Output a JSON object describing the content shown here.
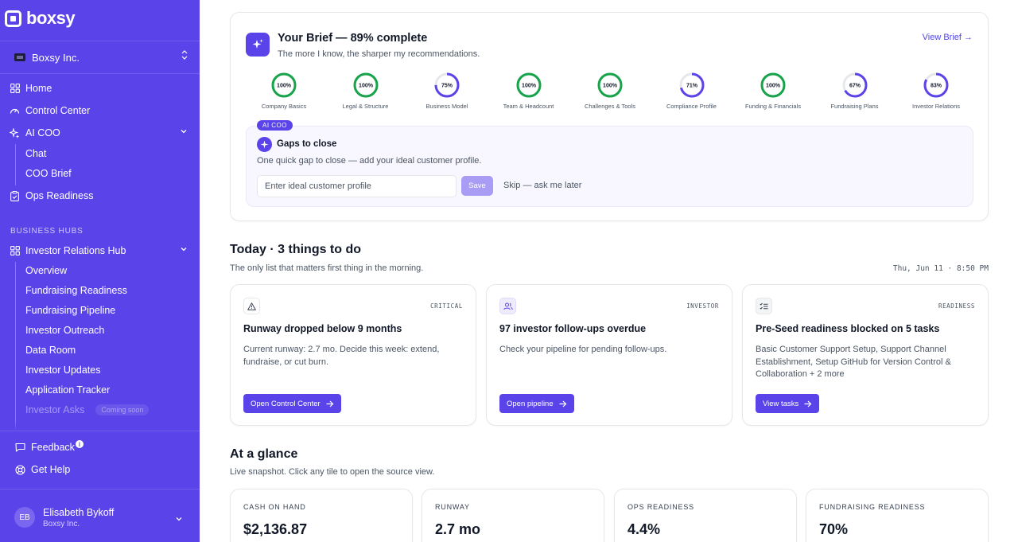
{
  "brand": {
    "name": "boxsy"
  },
  "org": {
    "name": "Boxsy Inc."
  },
  "sidebar": {
    "home": "Home",
    "control_center": "Control Center",
    "ai_coo": "AI COO",
    "ai_coo_children": [
      "Chat",
      "COO Brief"
    ],
    "ops_readiness": "Ops Readiness",
    "section_label": "BUSINESS HUBS",
    "investor_hub": "Investor Relations Hub",
    "investor_children": [
      "Overview",
      "Fundraising Readiness",
      "Fundraising Pipeline",
      "Investor Outreach",
      "Data Room",
      "Investor Updates",
      "Application Tracker"
    ],
    "investor_asks": "Investor Asks",
    "coming_soon": "Coming soon",
    "feedback": "Feedback",
    "get_help": "Get Help"
  },
  "user": {
    "initials": "EB",
    "name": "Elisabeth Bykoff",
    "org": "Boxsy Inc."
  },
  "brief": {
    "title": "Your Brief — 89% complete",
    "subtitle": "The more I know, the sharper my recommendations.",
    "view_link": "View Brief →",
    "rings": [
      {
        "pct": 100,
        "pct_label": "100%",
        "label": "Company Basics"
      },
      {
        "pct": 100,
        "pct_label": "100%",
        "label": "Legal & Structure"
      },
      {
        "pct": 75,
        "pct_label": "75%",
        "label": "Business Model"
      },
      {
        "pct": 100,
        "pct_label": "100%",
        "label": "Team & Headcount"
      },
      {
        "pct": 100,
        "pct_label": "100%",
        "label": "Challenges & Tools"
      },
      {
        "pct": 71,
        "pct_label": "71%",
        "label": "Compliance Profile"
      },
      {
        "pct": 100,
        "pct_label": "100%",
        "label": "Funding & Financials"
      },
      {
        "pct": 67,
        "pct_label": "67%",
        "label": "Fundraising Plans"
      },
      {
        "pct": 83,
        "pct_label": "83%",
        "label": "Investor Relations"
      }
    ],
    "colors": {
      "complete": "#16a34a",
      "partial": "#5b43ea",
      "track": "#e5e7eb"
    }
  },
  "gaps": {
    "tag": "AI COO",
    "title": "Gaps to close",
    "subtitle": "One quick gap to close — add your ideal customer profile.",
    "input_placeholder": "Enter ideal customer profile",
    "save": "Save",
    "skip": "Skip — ask me later"
  },
  "today": {
    "title": "Today · 3 things to do",
    "subtitle": "The only list that matters first thing in the morning.",
    "timestamp": "Thu, Jun 11 · 8:50 PM",
    "tasks": [
      {
        "icon": "warning-triangle-icon",
        "tag": "CRITICAL",
        "title": "Runway dropped below 9 months",
        "body": "Current runway: 2.7 mo. Decide this week: extend, fundraise, or cut burn.",
        "button": "Open Control Center"
      },
      {
        "icon": "users-icon",
        "tag": "INVESTOR",
        "title": "97 investor follow-ups overdue",
        "body": "Check your pipeline for pending follow-ups.",
        "button": "Open pipeline"
      },
      {
        "icon": "checklist-icon",
        "tag": "READINESS",
        "title": "Pre-Seed readiness blocked on 5 tasks",
        "body": "Basic Customer Support Setup, Support Channel Establishment, Setup GitHub for Version Control & Collaboration + 2 more",
        "button": "View tasks"
      }
    ]
  },
  "glance": {
    "title": "At a glance",
    "subtitle": "Live snapshot. Click any tile to open the source view.",
    "tiles": [
      {
        "label": "CASH ON HAND",
        "value": "$2,136.87"
      },
      {
        "label": "RUNWAY",
        "value": "2.7 mo"
      },
      {
        "label": "OPS READINESS",
        "value": "4.4%"
      },
      {
        "label": "FUNDRAISING READINESS",
        "value": "70%"
      }
    ]
  }
}
